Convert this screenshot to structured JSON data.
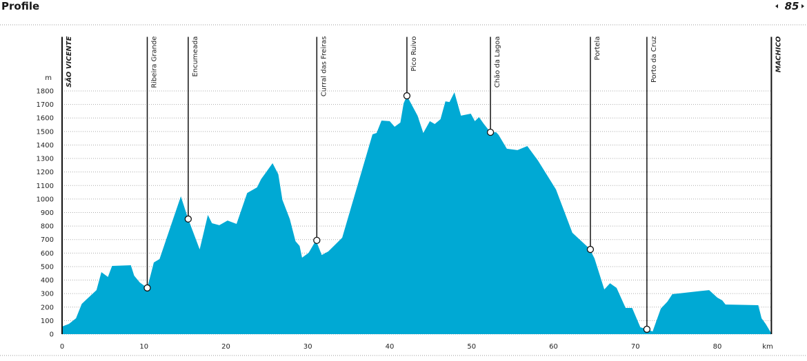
{
  "header": {
    "title": "Profile",
    "page": "85"
  },
  "chart_data": {
    "type": "area",
    "color": "#00a9d4",
    "ylabel": "m",
    "xlabel": "km",
    "xlim": [
      0,
      86.6
    ],
    "ylim": [
      0,
      2200
    ],
    "xticks": [
      0,
      10,
      20,
      30,
      40,
      50,
      60,
      70,
      80
    ],
    "yticks": [
      0,
      100,
      200,
      300,
      400,
      500,
      600,
      700,
      800,
      900,
      1000,
      1100,
      1200,
      1300,
      1400,
      1500,
      1600,
      1700,
      1800
    ],
    "grid": true,
    "x": [
      0,
      0.84,
      1.7,
      2.4,
      4.2,
      4.8,
      5.6,
      6.1,
      8.4,
      8.8,
      9.5,
      10.4,
      10.9,
      11.2,
      11.9,
      14.5,
      15.4,
      16.8,
      17.8,
      18.3,
      19.2,
      20.2,
      21.3,
      22.6,
      23.8,
      24.3,
      25.7,
      26.4,
      26.9,
      27.8,
      28.5,
      29.0,
      29.3,
      30.1,
      31.0,
      31.7,
      32.5,
      34.2,
      37.9,
      38.4,
      39.0,
      40.0,
      40.6,
      41.3,
      41.7,
      42.1,
      43.4,
      44.1,
      44.9,
      45.5,
      46.2,
      46.8,
      47.3,
      47.9,
      48.7,
      49.9,
      50.4,
      50.9,
      51.5,
      52.3,
      53.0,
      53.3,
      53.9,
      54.3,
      55.6,
      56.8,
      58.1,
      60.3,
      62.3,
      64.4,
      65.0,
      66.2,
      66.9,
      67.7,
      68.8,
      69.6,
      70.6,
      71.4,
      72.1,
      73.1,
      73.9,
      74.5,
      79.0,
      80.0,
      80.6,
      81.0,
      85.0,
      85.4,
      85.9,
      86.6
    ],
    "values": [
      56,
      76,
      117,
      224,
      326,
      459,
      423,
      505,
      510,
      433,
      382,
      342,
      459,
      530,
      556,
      1020,
      852,
      627,
      882,
      821,
      806,
      841,
      816,
      1045,
      1086,
      1147,
      1265,
      1183,
      994,
      852,
      688,
      653,
      566,
      602,
      694,
      586,
      612,
      714,
      1479,
      1489,
      1581,
      1576,
      1535,
      1566,
      1708,
      1764,
      1617,
      1489,
      1576,
      1555,
      1591,
      1723,
      1718,
      1790,
      1617,
      1632,
      1576,
      1606,
      1555,
      1494,
      1494,
      1474,
      1413,
      1372,
      1362,
      1392,
      1285,
      1071,
      750,
      632,
      561,
      331,
      377,
      342,
      194,
      194,
      51,
      36,
      20,
      189,
      240,
      296,
      326,
      270,
      250,
      219,
      214,
      117,
      76,
      5
    ],
    "waypoints": [
      {
        "label": "SÃO VICENTE",
        "x": 0
      },
      {
        "label": "Ribeira Grande",
        "x": 10.4,
        "y": 342
      },
      {
        "label": "Encumeada",
        "x": 15.4,
        "y": 852
      },
      {
        "label": "Curral das Freiras",
        "x": 31.1,
        "y": 694
      },
      {
        "label": "Pico Ruivo",
        "x": 42.1,
        "y": 1764
      },
      {
        "label": "Chão da Lagoa",
        "x": 52.3,
        "y": 1494
      },
      {
        "label": "Portela",
        "x": 64.5,
        "y": 627
      },
      {
        "label": "Porto da Cruz",
        "x": 71.4,
        "y": 36
      },
      {
        "label": "MACHICO",
        "x": 86.6
      }
    ]
  }
}
